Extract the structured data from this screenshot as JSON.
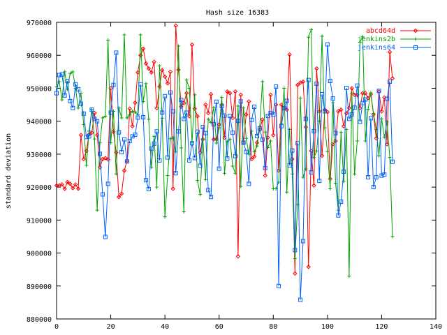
{
  "chart_data": {
    "type": "line",
    "title": "Hash size 16383",
    "xlabel": "",
    "ylabel": "standard deviation",
    "xlim": [
      0,
      140
    ],
    "ylim": [
      880000,
      970000
    ],
    "x_ticks": [
      0,
      20,
      40,
      60,
      80,
      100,
      120,
      140
    ],
    "y_ticks": [
      880000,
      890000,
      900000,
      910000,
      920000,
      930000,
      940000,
      950000,
      960000,
      970000
    ],
    "x_tick_labels": [
      "0",
      "20",
      "40",
      "60",
      "80",
      "100",
      "120",
      "140"
    ],
    "y_tick_labels": [
      "880000",
      "890000",
      "900000",
      "910000",
      "920000",
      "930000",
      "940000",
      "950000",
      "960000",
      "970000"
    ],
    "legend_position": "top-right",
    "grid": false,
    "series": [
      {
        "name": "abcd64d",
        "color": "#ff0000",
        "marker": "diamond",
        "values": [
          920500,
          920500,
          920800,
          919500,
          921500,
          921000,
          919700,
          920800,
          919500,
          935800,
          928500,
          931000,
          936000,
          936500,
          942500,
          935800,
          926000,
          928500,
          928800,
          928400,
          950000,
          936800,
          930500,
          917000,
          918000,
          925000,
          928000,
          943800,
          938500,
          945600,
          954800,
          960000,
          962000,
          957500,
          956000,
          954800,
          958000,
          944000,
          950500,
          955500,
          953500,
          951500,
          955000,
          919500,
          969000,
          955600,
          944400,
          945500,
          948500,
          941500,
          963200,
          943800,
          941500,
          930500,
          934500,
          945000,
          942500,
          948200,
          934500,
          934500,
          939000,
          945000,
          935000,
          949000,
          948500,
          941000,
          949000,
          899000,
          948000,
          933500,
          942000,
          946000,
          928500,
          929300,
          933500,
          937500,
          940500,
          923500,
          935000,
          948000,
          935800,
          945000,
          925000,
          945000,
          944000,
          943500,
          960200,
          928500,
          893800,
          951000,
          951700,
          952000,
          938200,
          895800,
          931000,
          920500,
          956000,
          943000,
          929500,
          943500,
          942800,
          922500,
          933000,
          934000,
          943000,
          943500,
          938500,
          942400,
          944000,
          950000,
          948000,
          948000,
          944000,
          948500,
          948500,
          947000,
          948200,
          942000,
          934800,
          949000,
          943000,
          947200,
          933000,
          961000,
          953000
        ]
      },
      {
        "name": "jenkins2b",
        "color": "#00a000",
        "marker": "plus",
        "values": [
          950500,
          952000,
          946500,
          955000,
          949700,
          954500,
          955000,
          950000,
          944000,
          948500,
          939000,
          926600,
          937000,
          943600,
          934600,
          913000,
          933500,
          941000,
          941500,
          964600,
          933500,
          943000,
          924000,
          944000,
          941000,
          966200,
          941000,
          942000,
          943000,
          942800,
          942000,
          966200,
          946000,
          951400,
          940600,
          926000,
          935400,
          920000,
          956800,
          940900,
          911000,
          923500,
          934700,
          935000,
          930800,
          962800,
          931900,
          912500,
          952500,
          950000,
          933600,
          948000,
          922000,
          917800,
          934500,
          922300,
          940600,
          939600,
          944100,
          933400,
          938000,
          947200,
          924200,
          933800,
          934500,
          926400,
          924200,
          944600,
          920200,
          944000,
          934800,
          930000,
          937000,
          930700,
          932500,
          938400,
          952000,
          936700,
          932000,
          934000,
          919500,
          919500,
          921500,
          939200,
          950000,
          918500,
          937500,
          924000,
          898300,
          914700,
          947000,
          923000,
          925500,
          965500,
          967800,
          929000,
          931000,
          940000,
          965800,
          938000,
          930800,
          919500,
          945600,
          921200,
          913000,
          936600,
          921800,
          937500,
          893000,
          948500,
          924000,
          934000,
          964000,
          965600,
          934000,
          943600,
          948600,
          942400,
          937500,
          929500,
          940700,
          935200,
          939800,
          929000,
          905000
        ]
      },
      {
        "name": "jenkins64",
        "color": "#0060ff",
        "marker": "square",
        "values": [
          948500,
          954000,
          954200,
          947800,
          952200,
          946100,
          944000,
          951200,
          949700,
          945300,
          942300,
          935200,
          935400,
          943500,
          940700,
          940000,
          930100,
          917800,
          904900,
          921000,
          942600,
          951000,
          960800,
          936600,
          930600,
          934500,
          927800,
          934000,
          935400,
          935900,
          941100,
          951200,
          941200,
          922100,
          919400,
          931700,
          933200,
          936900,
          928100,
          942600,
          947600,
          929000,
          948700,
          943000,
          924200,
          936900,
          946500,
          940700,
          942600,
          928100,
          933300,
          928800,
          936800,
          926500,
          938200,
          936400,
          919100,
          917000,
          939100,
          945900,
          925600,
          944600,
          941700,
          928700,
          941600,
          936500,
          929400,
          940100,
          946000,
          933500,
          930700,
          921000,
          940400,
          944400,
          935500,
          937800,
          934400,
          925800,
          941600,
          942500,
          942000,
          950500,
          890000,
          938500,
          944000,
          946200,
          926600,
          931100,
          900900,
          933300,
          885800,
          903600,
          940700,
          952500,
          924500,
          937000,
          951400,
          921900,
          948200,
          943000,
          963300,
          952200,
          946900,
          936400,
          911400,
          915600,
          924700,
          950100,
          940700,
          942100,
          944100,
          950800,
          939800,
          945500,
          946600,
          923000,
          940900,
          920000,
          923000,
          949200,
          923500,
          923800,
          946800,
          952000,
          927700
        ]
      }
    ]
  }
}
